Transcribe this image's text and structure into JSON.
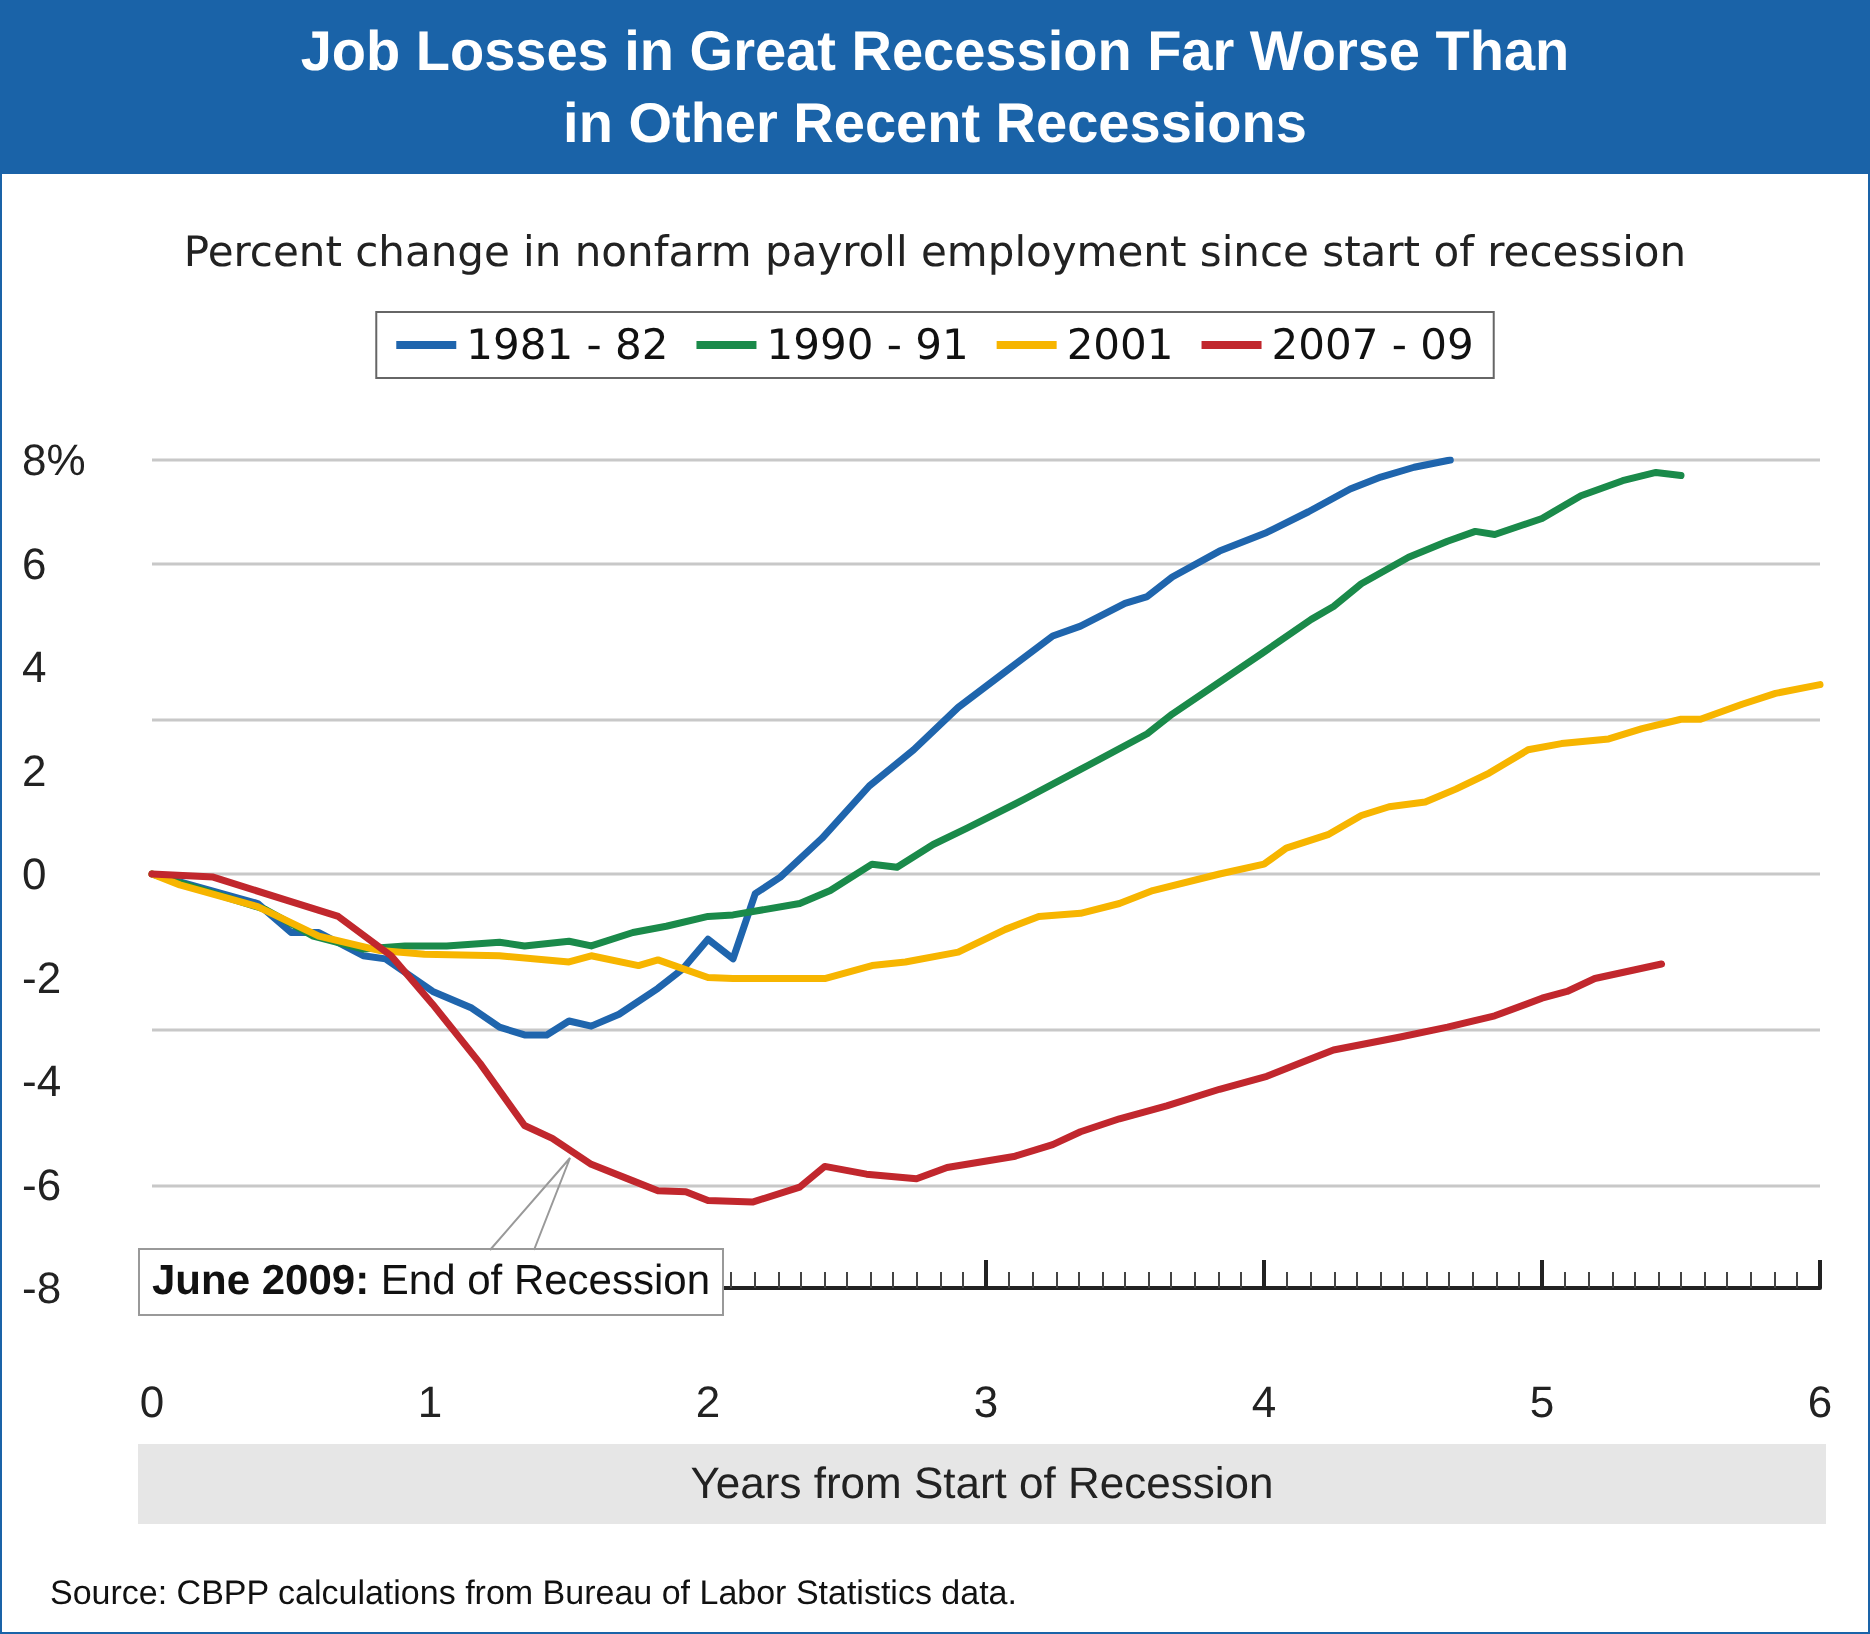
{
  "chart_data": {
    "type": "line",
    "title": "Job Losses in Great Recession Far Worse Than in Other Recent Recessions",
    "subtitle": "Percent change in nonfarm payroll employment since start of recession",
    "xlabel": "Years from Start of Recession",
    "xlim": [
      0,
      6
    ],
    "xticks": [
      0,
      1,
      2,
      3,
      4,
      5,
      6
    ],
    "ylim": [
      -8,
      8
    ],
    "yticks": [
      -8,
      -6,
      -4,
      -2,
      0,
      2,
      4,
      6,
      {
        "value": 8,
        "label": "8%"
      }
    ],
    "grid": "y",
    "legend": "top",
    "marker": "none",
    "line_style": "solid",
    "series": [
      {
        "name": "1981 - 82",
        "color": "#1f65ad",
        "x": [
          0,
          0.38,
          0.5,
          0.6,
          0.76,
          0.84,
          1.01,
          1.15,
          1.25,
          1.34,
          1.42,
          1.5,
          1.58,
          1.68,
          1.82,
          1.91,
          2.0,
          2.09,
          2.17,
          2.26,
          2.41,
          2.58,
          2.74,
          2.9,
          3.07,
          3.24,
          3.34,
          3.5,
          3.58,
          3.67,
          3.84,
          4.01,
          4.16,
          4.31,
          4.42,
          4.54,
          4.67
        ],
        "values": [
          0,
          -0.57,
          -1.13,
          -1.13,
          -1.58,
          -1.64,
          -2.27,
          -2.59,
          -2.96,
          -3.11,
          -3.11,
          -2.84,
          -2.94,
          -2.71,
          -2.21,
          -1.83,
          -1.26,
          -1.64,
          -0.38,
          -0.06,
          0.69,
          1.7,
          2.4,
          3.22,
          3.91,
          4.6,
          4.79,
          5.23,
          5.36,
          5.74,
          6.24,
          6.6,
          7.0,
          7.44,
          7.67,
          7.86,
          8.0
        ]
      },
      {
        "name": "1990 - 91",
        "color": "#1a8a4a",
        "x": [
          0,
          0.19,
          0.41,
          0.58,
          0.76,
          0.91,
          1.06,
          1.25,
          1.34,
          1.5,
          1.58,
          1.73,
          1.85,
          2.0,
          2.09,
          2.33,
          2.44,
          2.59,
          2.68,
          2.81,
          2.93,
          3.14,
          3.34,
          3.58,
          3.67,
          4.0,
          4.17,
          4.25,
          4.35,
          4.52,
          4.66,
          4.76,
          4.83,
          5.0,
          5.14,
          5.29,
          5.41,
          5.5
        ],
        "values": [
          0,
          -0.32,
          -0.69,
          -1.2,
          -1.45,
          -1.39,
          -1.39,
          -1.32,
          -1.39,
          -1.3,
          -1.39,
          -1.13,
          -1.01,
          -0.82,
          -0.79,
          -0.57,
          -0.32,
          0.19,
          0.13,
          0.57,
          0.88,
          1.45,
          2.02,
          2.71,
          3.09,
          4.29,
          4.92,
          5.17,
          5.61,
          6.12,
          6.43,
          6.62,
          6.56,
          6.87,
          7.31,
          7.6,
          7.76,
          7.7
        ]
      },
      {
        "name": "2001",
        "color": "#f7b500",
        "x": [
          0,
          0.1,
          0.38,
          0.6,
          0.82,
          0.98,
          1.25,
          1.5,
          1.58,
          1.75,
          1.82,
          2.0,
          2.09,
          2.42,
          2.59,
          2.71,
          2.9,
          3.07,
          3.19,
          3.34,
          3.48,
          3.6,
          3.84,
          4.0,
          4.08,
          4.23,
          4.35,
          4.45,
          4.58,
          4.69,
          4.81,
          4.95,
          5.07,
          5.24,
          5.36,
          5.5,
          5.57,
          5.72,
          5.84,
          6.0
        ],
        "values": [
          0,
          -0.21,
          -0.63,
          -1.2,
          -1.48,
          -1.55,
          -1.58,
          -1.7,
          -1.58,
          -1.77,
          -1.66,
          -2.0,
          -2.02,
          -2.02,
          -1.77,
          -1.7,
          -1.51,
          -1.07,
          -0.82,
          -0.76,
          -0.57,
          -0.32,
          0,
          0.19,
          0.5,
          0.76,
          1.13,
          1.3,
          1.39,
          1.64,
          1.95,
          2.4,
          2.52,
          2.61,
          2.81,
          2.99,
          2.99,
          3.28,
          3.49,
          3.66
        ]
      },
      {
        "name": "2007 - 09",
        "color": "#c1272d",
        "x": [
          0,
          0.22,
          0.48,
          0.67,
          0.86,
          1.01,
          1.18,
          1.34,
          1.44,
          1.58,
          1.73,
          1.82,
          1.92,
          2.0,
          2.16,
          2.33,
          2.42,
          2.57,
          2.75,
          2.86,
          3.1,
          3.24,
          3.34,
          3.48,
          3.65,
          3.84,
          4.01,
          4.16,
          4.25,
          4.49,
          4.66,
          4.83,
          5.0,
          5.09,
          5.19,
          5.43
        ],
        "values": [
          0,
          -0.06,
          -0.5,
          -0.82,
          -1.58,
          -2.52,
          -3.66,
          -4.86,
          -5.11,
          -5.61,
          -5.93,
          -6.12,
          -6.14,
          -6.31,
          -6.34,
          -6.05,
          -5.65,
          -5.8,
          -5.89,
          -5.67,
          -5.46,
          -5.23,
          -4.98,
          -4.73,
          -4.48,
          -4.16,
          -3.91,
          -3.59,
          -3.4,
          -3.15,
          -2.96,
          -2.74,
          -2.4,
          -2.27,
          -2.02,
          -1.74
        ]
      }
    ],
    "annotations": [
      {
        "text": "June 2009: End of Recession",
        "x": 1.5,
        "y": -5.5
      },
      "Source: CBPP calculations from Bureau of Labor Statistics data."
    ]
  }
}
